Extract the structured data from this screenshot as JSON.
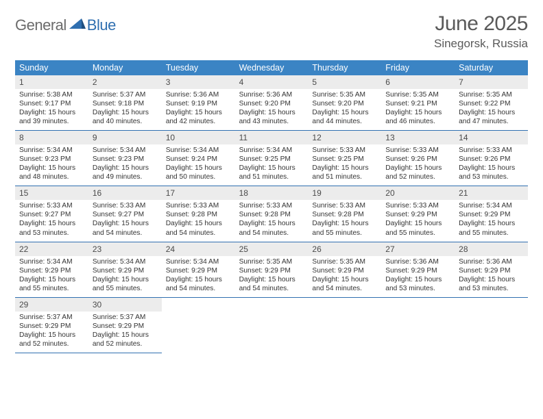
{
  "logo": {
    "part1": "General",
    "part2": "Blue"
  },
  "title": "June 2025",
  "location": "Sinegorsk, Russia",
  "colors": {
    "header_bg": "#3b84c4",
    "border": "#2f6fb0",
    "daynum_bg": "#ececec",
    "logo_gray": "#6b6b6b",
    "logo_blue": "#2f6fb0",
    "text": "#2b2b2b"
  },
  "weekdays": [
    "Sunday",
    "Monday",
    "Tuesday",
    "Wednesday",
    "Thursday",
    "Friday",
    "Saturday"
  ],
  "days": [
    {
      "n": "1",
      "sr": "5:38 AM",
      "ss": "9:17 PM",
      "dl": "15 hours and 39 minutes."
    },
    {
      "n": "2",
      "sr": "5:37 AM",
      "ss": "9:18 PM",
      "dl": "15 hours and 40 minutes."
    },
    {
      "n": "3",
      "sr": "5:36 AM",
      "ss": "9:19 PM",
      "dl": "15 hours and 42 minutes."
    },
    {
      "n": "4",
      "sr": "5:36 AM",
      "ss": "9:20 PM",
      "dl": "15 hours and 43 minutes."
    },
    {
      "n": "5",
      "sr": "5:35 AM",
      "ss": "9:20 PM",
      "dl": "15 hours and 44 minutes."
    },
    {
      "n": "6",
      "sr": "5:35 AM",
      "ss": "9:21 PM",
      "dl": "15 hours and 46 minutes."
    },
    {
      "n": "7",
      "sr": "5:35 AM",
      "ss": "9:22 PM",
      "dl": "15 hours and 47 minutes."
    },
    {
      "n": "8",
      "sr": "5:34 AM",
      "ss": "9:23 PM",
      "dl": "15 hours and 48 minutes."
    },
    {
      "n": "9",
      "sr": "5:34 AM",
      "ss": "9:23 PM",
      "dl": "15 hours and 49 minutes."
    },
    {
      "n": "10",
      "sr": "5:34 AM",
      "ss": "9:24 PM",
      "dl": "15 hours and 50 minutes."
    },
    {
      "n": "11",
      "sr": "5:34 AM",
      "ss": "9:25 PM",
      "dl": "15 hours and 51 minutes."
    },
    {
      "n": "12",
      "sr": "5:33 AM",
      "ss": "9:25 PM",
      "dl": "15 hours and 51 minutes."
    },
    {
      "n": "13",
      "sr": "5:33 AM",
      "ss": "9:26 PM",
      "dl": "15 hours and 52 minutes."
    },
    {
      "n": "14",
      "sr": "5:33 AM",
      "ss": "9:26 PM",
      "dl": "15 hours and 53 minutes."
    },
    {
      "n": "15",
      "sr": "5:33 AM",
      "ss": "9:27 PM",
      "dl": "15 hours and 53 minutes."
    },
    {
      "n": "16",
      "sr": "5:33 AM",
      "ss": "9:27 PM",
      "dl": "15 hours and 54 minutes."
    },
    {
      "n": "17",
      "sr": "5:33 AM",
      "ss": "9:28 PM",
      "dl": "15 hours and 54 minutes."
    },
    {
      "n": "18",
      "sr": "5:33 AM",
      "ss": "9:28 PM",
      "dl": "15 hours and 54 minutes."
    },
    {
      "n": "19",
      "sr": "5:33 AM",
      "ss": "9:28 PM",
      "dl": "15 hours and 55 minutes."
    },
    {
      "n": "20",
      "sr": "5:33 AM",
      "ss": "9:29 PM",
      "dl": "15 hours and 55 minutes."
    },
    {
      "n": "21",
      "sr": "5:34 AM",
      "ss": "9:29 PM",
      "dl": "15 hours and 55 minutes."
    },
    {
      "n": "22",
      "sr": "5:34 AM",
      "ss": "9:29 PM",
      "dl": "15 hours and 55 minutes."
    },
    {
      "n": "23",
      "sr": "5:34 AM",
      "ss": "9:29 PM",
      "dl": "15 hours and 55 minutes."
    },
    {
      "n": "24",
      "sr": "5:34 AM",
      "ss": "9:29 PM",
      "dl": "15 hours and 54 minutes."
    },
    {
      "n": "25",
      "sr": "5:35 AM",
      "ss": "9:29 PM",
      "dl": "15 hours and 54 minutes."
    },
    {
      "n": "26",
      "sr": "5:35 AM",
      "ss": "9:29 PM",
      "dl": "15 hours and 54 minutes."
    },
    {
      "n": "27",
      "sr": "5:36 AM",
      "ss": "9:29 PM",
      "dl": "15 hours and 53 minutes."
    },
    {
      "n": "28",
      "sr": "5:36 AM",
      "ss": "9:29 PM",
      "dl": "15 hours and 53 minutes."
    },
    {
      "n": "29",
      "sr": "5:37 AM",
      "ss": "9:29 PM",
      "dl": "15 hours and 52 minutes."
    },
    {
      "n": "30",
      "sr": "5:37 AM",
      "ss": "9:29 PM",
      "dl": "15 hours and 52 minutes."
    }
  ],
  "labels": {
    "sunrise": "Sunrise:",
    "sunset": "Sunset:",
    "daylight": "Daylight:"
  }
}
